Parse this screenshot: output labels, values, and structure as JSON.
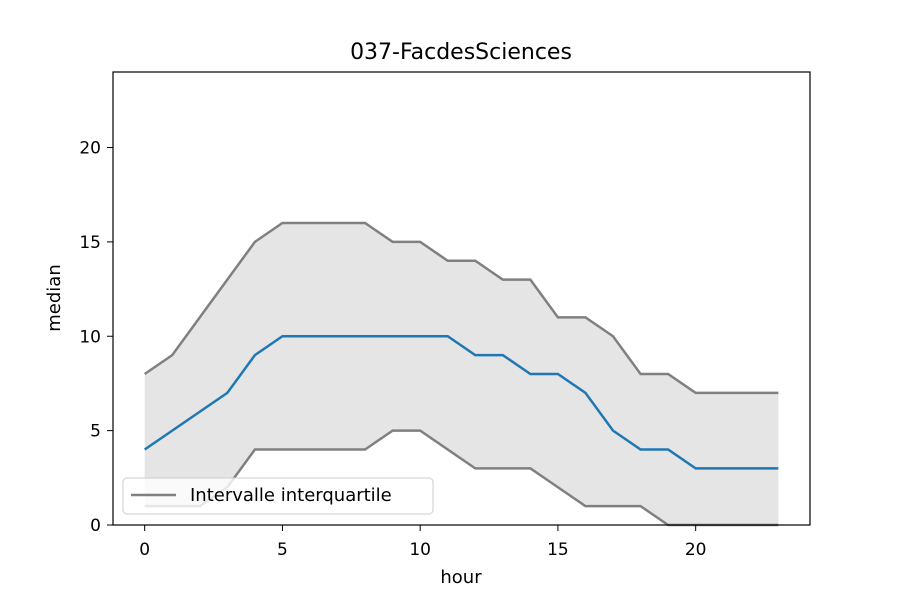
{
  "chart_data": {
    "type": "line",
    "title": "037-FacdesSciences",
    "xlabel": "hour",
    "ylabel": "median",
    "xlim": [
      -1.15,
      24.15
    ],
    "ylim": [
      0,
      24
    ],
    "xticks": [
      0,
      5,
      10,
      15,
      20
    ],
    "yticks": [
      0,
      5,
      10,
      15,
      20
    ],
    "grid": false,
    "legend_position": "lower-left",
    "x": [
      0,
      1,
      2,
      3,
      4,
      5,
      6,
      7,
      8,
      9,
      10,
      11,
      12,
      13,
      14,
      15,
      16,
      17,
      18,
      19,
      20,
      21,
      22,
      23
    ],
    "series": [
      {
        "role": "median",
        "color": "#1f77b4",
        "values": [
          4,
          5,
          6,
          7,
          9,
          10,
          10,
          10,
          10,
          10,
          10,
          10,
          9,
          9,
          8,
          8,
          7,
          5,
          4,
          4,
          3,
          3,
          3,
          3
        ]
      },
      {
        "role": "q75",
        "name": "Intervalle interquartile",
        "color": "#808080",
        "values": [
          8,
          9,
          11,
          13,
          15,
          16,
          16,
          16,
          16,
          15,
          15,
          14,
          14,
          13,
          13,
          11,
          11,
          10,
          8,
          8,
          7,
          7,
          7,
          7
        ]
      },
      {
        "role": "q25",
        "color": "#808080",
        "values": [
          1,
          1,
          1,
          2,
          4,
          4,
          4,
          4,
          4,
          5,
          5,
          4,
          3,
          3,
          3,
          2,
          1,
          1,
          1,
          0,
          0,
          0,
          0,
          0
        ]
      }
    ],
    "fill_color": "#e5e5e5",
    "legend": [
      {
        "label": "Intervalle interquartile",
        "color": "#808080"
      }
    ]
  }
}
